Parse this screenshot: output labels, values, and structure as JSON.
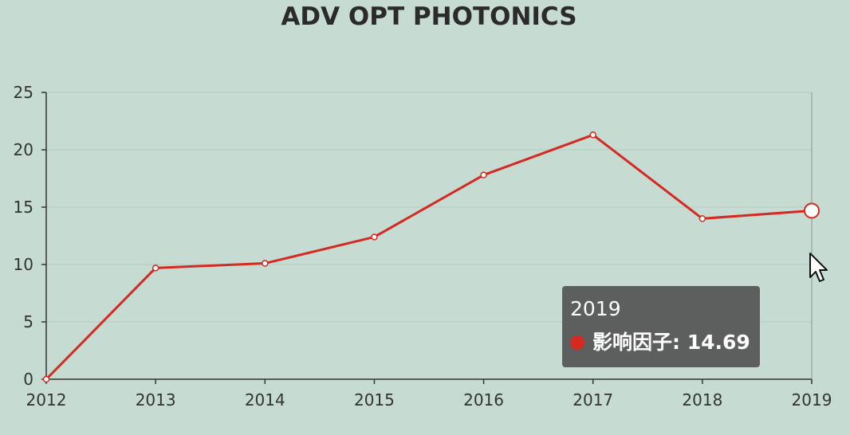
{
  "chart_data": {
    "type": "line",
    "title": "ADV OPT PHOTONICS",
    "xlabel": "",
    "ylabel": "",
    "categories": [
      "2012",
      "2013",
      "2014",
      "2015",
      "2016",
      "2017",
      "2018",
      "2019"
    ],
    "series": [
      {
        "name": "影响因子",
        "values": [
          0,
          9.7,
          10.1,
          12.4,
          17.8,
          21.3,
          14.0,
          14.69
        ],
        "color": "#d42a22"
      }
    ],
    "ylim": [
      0,
      25
    ],
    "yticks": [
      "0",
      "5",
      "10",
      "15",
      "20",
      "25"
    ],
    "grid": true,
    "legend": "none",
    "tooltip": {
      "x": "2019",
      "label": "影响因子: 14.69",
      "color": "#d42a22"
    }
  },
  "colors": {
    "background": "#c6dbd2",
    "line": "#d42a22",
    "axis": "#333333",
    "tooltip_bg": "#5d5f5e"
  },
  "icons": {
    "cursor": "mouse-pointer-icon"
  }
}
